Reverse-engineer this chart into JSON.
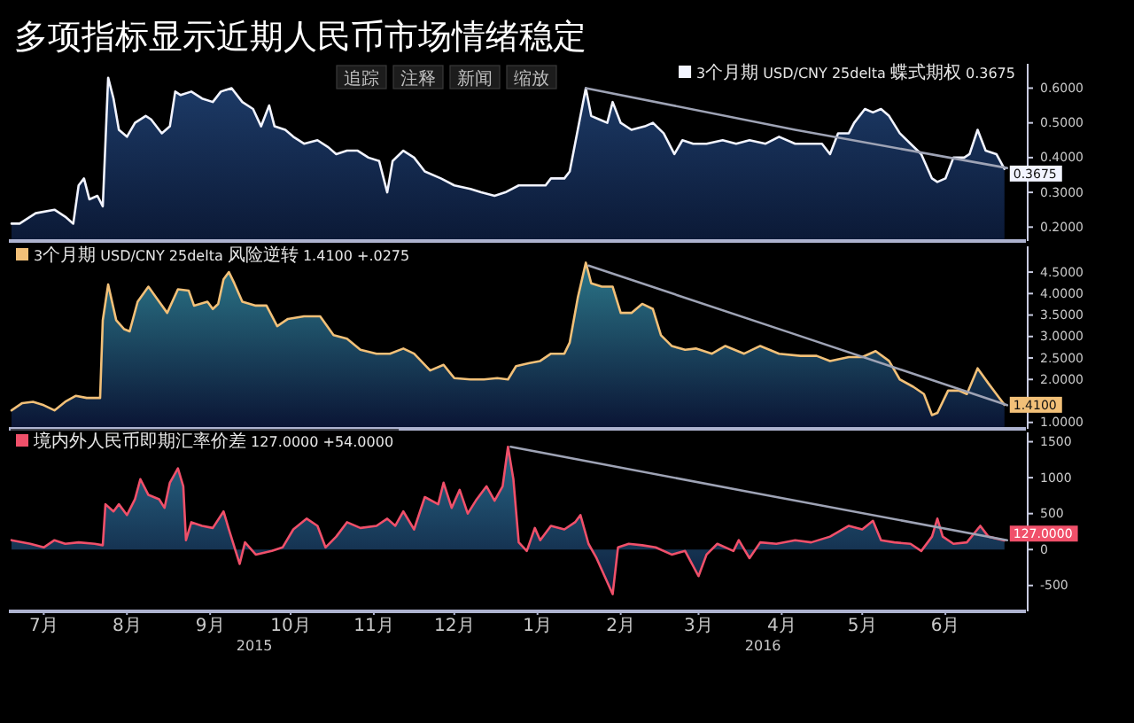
{
  "chart_data": [
    {
      "type": "area",
      "title": "多项指标显示近期人民币市场情绪稳定",
      "annotations": [
        "追踪",
        "注释",
        "新闻",
        "缩放"
      ],
      "xlim": [
        "2015-07-02",
        "2016-07-15"
      ],
      "ylim": [
        0.16,
        0.67
      ],
      "yticks": [
        {
          "value": 0.2,
          "label": "0.2000"
        },
        {
          "value": 0.3,
          "label": "0.3000"
        },
        {
          "value": 0.4,
          "label": "0.4000"
        },
        {
          "value": 0.5,
          "label": "0.5000"
        },
        {
          "value": 0.6,
          "label": "0.6000"
        }
      ],
      "tick_labels": "y",
      "legend": "top right",
      "series": [
        {
          "name": "3个月期 USD/CNY 25delta 蝶式期权 0.3675",
          "color": "#f2f4ff",
          "x": [
            "2015-07-03",
            "2015-07-06",
            "2015-07-12",
            "2015-07-19",
            "2015-07-23",
            "2015-07-26",
            "2015-07-28",
            "2015-07-30",
            "2015-08-01",
            "2015-08-04",
            "2015-08-06",
            "2015-08-08",
            "2015-08-10",
            "2015-08-12",
            "2015-08-15",
            "2015-08-18",
            "2015-08-22",
            "2015-08-24",
            "2015-08-28",
            "2015-08-31",
            "2015-09-02",
            "2015-09-04",
            "2015-09-08",
            "2015-09-12",
            "2015-09-16",
            "2015-09-19",
            "2015-09-23",
            "2015-09-27",
            "2015-10-01",
            "2015-10-04",
            "2015-10-07",
            "2015-10-09",
            "2015-10-13",
            "2015-10-16",
            "2015-10-20",
            "2015-10-25",
            "2015-10-29",
            "2015-11-01",
            "2015-11-05",
            "2015-11-09",
            "2015-11-13",
            "2015-11-17",
            "2015-11-20",
            "2015-11-22",
            "2015-11-26",
            "2015-11-30",
            "2015-12-04",
            "2015-12-10",
            "2015-12-15",
            "2015-12-21",
            "2015-12-25",
            "2015-12-30",
            "2016-01-03",
            "2016-01-08",
            "2016-01-14",
            "2016-01-18",
            "2016-01-20",
            "2016-01-25",
            "2016-01-27",
            "2016-01-30",
            "2016-02-02",
            "2016-02-04",
            "2016-02-07",
            "2016-02-10",
            "2016-02-12",
            "2016-02-15",
            "2016-02-19",
            "2016-02-24",
            "2016-02-27",
            "2016-03-02",
            "2016-03-06",
            "2016-03-09",
            "2016-03-13",
            "2016-03-18",
            "2016-03-24",
            "2016-03-29",
            "2016-04-03",
            "2016-04-09",
            "2016-04-14",
            "2016-04-20",
            "2016-04-25",
            "2016-04-30",
            "2016-05-03",
            "2016-05-06",
            "2016-05-10",
            "2016-05-12",
            "2016-05-16",
            "2016-05-19",
            "2016-05-22",
            "2016-05-25",
            "2016-05-29",
            "2016-06-02",
            "2016-06-06",
            "2016-06-10",
            "2016-06-12",
            "2016-06-15",
            "2016-06-18",
            "2016-06-22",
            "2016-06-24",
            "2016-06-27",
            "2016-06-30",
            "2016-07-04",
            "2016-07-07"
          ],
          "values": [
            0.21,
            0.21,
            0.24,
            0.25,
            0.23,
            0.21,
            0.32,
            0.34,
            0.28,
            0.29,
            0.26,
            0.63,
            0.57,
            0.48,
            0.46,
            0.5,
            0.52,
            0.51,
            0.47,
            0.49,
            0.59,
            0.58,
            0.59,
            0.57,
            0.56,
            0.59,
            0.6,
            0.56,
            0.54,
            0.49,
            0.55,
            0.49,
            0.48,
            0.46,
            0.44,
            0.45,
            0.43,
            0.41,
            0.42,
            0.42,
            0.4,
            0.39,
            0.3,
            0.39,
            0.42,
            0.4,
            0.36,
            0.34,
            0.32,
            0.31,
            0.3,
            0.29,
            0.3,
            0.32,
            0.32,
            0.32,
            0.34,
            0.34,
            0.36,
            0.48,
            0.6,
            0.52,
            0.51,
            0.5,
            0.56,
            0.5,
            0.48,
            0.49,
            0.5,
            0.47,
            0.41,
            0.45,
            0.44,
            0.44,
            0.45,
            0.44,
            0.45,
            0.44,
            0.46,
            0.44,
            0.44,
            0.44,
            0.41,
            0.47,
            0.47,
            0.5,
            0.54,
            0.53,
            0.54,
            0.52,
            0.47,
            0.44,
            0.41,
            0.34,
            0.33,
            0.34,
            0.4,
            0.4,
            0.41,
            0.48,
            0.42,
            0.41,
            0.3675
          ],
          "value_labels": [
            null,
            null,
            null,
            null,
            null,
            null,
            null,
            null,
            null,
            null,
            null,
            null,
            null,
            null,
            null,
            null,
            null,
            null,
            null,
            null,
            null,
            null,
            null,
            null,
            null,
            null,
            null,
            null,
            null,
            null,
            null,
            null,
            null,
            null,
            null,
            null,
            null,
            null,
            null,
            null,
            null,
            null,
            null,
            null,
            null,
            null,
            null,
            null,
            null,
            null,
            null,
            null,
            null,
            null,
            null,
            null,
            null,
            null,
            null,
            null,
            null,
            null,
            null,
            null,
            null,
            null,
            null,
            null,
            null,
            null,
            null,
            null,
            null,
            null,
            null,
            null,
            null,
            null,
            null,
            null,
            null,
            null,
            null,
            null,
            null,
            null,
            null,
            null,
            null,
            null,
            null,
            null,
            null,
            null,
            null,
            null,
            null,
            null,
            null,
            null,
            null,
            null,
            "0.3675"
          ]
        },
        {
          "type": "line",
          "color": "#9ea3b5",
          "x": [
            "2016-02-02",
            "2016-04-20",
            "2016-07-08"
          ],
          "values": [
            0.6,
            0.48,
            0.37
          ]
        }
      ]
    },
    {
      "type": "area",
      "xlim": [
        "2015-07-02",
        "2016-07-15"
      ],
      "ylim": [
        0.85,
        5.1
      ],
      "yticks": [
        {
          "value": 1,
          "label": "1.0000"
        },
        {
          "value": 2,
          "label": "2.0000"
        },
        {
          "value": 2.5,
          "label": "2.5000"
        },
        {
          "value": 3,
          "label": "3.0000"
        },
        {
          "value": 3.5,
          "label": "3.5000"
        },
        {
          "value": 4,
          "label": "4.0000"
        },
        {
          "value": 4.5,
          "label": "4.5000"
        }
      ],
      "tick_labels": "y",
      "legend": "top left",
      "series": [
        {
          "name": "3个月期 USD/CNY 25delta 风险逆转 1.4100 +.0275",
          "color": "#f2c078",
          "x": [
            "2015-07-03",
            "2015-07-07",
            "2015-07-11",
            "2015-07-15",
            "2015-07-19",
            "2015-07-23",
            "2015-07-27",
            "2015-07-31",
            "2015-08-05",
            "2015-08-06",
            "2015-08-08",
            "2015-08-11",
            "2015-08-14",
            "2015-08-16",
            "2015-08-19",
            "2015-08-23",
            "2015-08-26",
            "2015-08-30",
            "2015-09-03",
            "2015-09-07",
            "2015-09-09",
            "2015-09-14",
            "2015-09-16",
            "2015-09-18",
            "2015-09-20",
            "2015-09-22",
            "2015-09-24",
            "2015-09-27",
            "2015-10-02",
            "2015-10-06",
            "2015-10-10",
            "2015-10-14",
            "2015-10-20",
            "2015-10-26",
            "2015-10-31",
            "2015-11-05",
            "2015-11-10",
            "2015-11-16",
            "2015-11-21",
            "2015-11-26",
            "2015-11-30",
            "2015-12-06",
            "2015-12-11",
            "2015-12-15",
            "2015-12-21",
            "2015-12-26",
            "2015-12-31",
            "2016-01-04",
            "2016-01-07",
            "2016-01-12",
            "2016-01-16",
            "2016-01-20",
            "2016-01-25",
            "2016-01-27",
            "2016-01-30",
            "2016-02-02",
            "2016-02-04",
            "2016-02-08",
            "2016-02-12",
            "2016-02-15",
            "2016-02-19",
            "2016-02-23",
            "2016-02-27",
            "2016-03-01",
            "2016-03-05",
            "2016-03-10",
            "2016-03-14",
            "2016-03-20",
            "2016-03-25",
            "2016-04-01",
            "2016-04-07",
            "2016-04-14",
            "2016-04-22",
            "2016-04-28",
            "2016-05-03",
            "2016-05-10",
            "2016-05-15",
            "2016-05-20",
            "2016-05-25",
            "2016-05-29",
            "2016-06-03",
            "2016-06-07",
            "2016-06-10",
            "2016-06-12",
            "2016-06-16",
            "2016-06-20",
            "2016-06-23",
            "2016-06-27",
            "2016-07-01",
            "2016-07-04",
            "2016-07-07"
          ],
          "values": [
            1.28,
            1.45,
            1.48,
            1.4,
            1.28,
            1.48,
            1.62,
            1.57,
            1.57,
            3.38,
            4.21,
            3.38,
            3.17,
            3.12,
            3.81,
            4.16,
            3.9,
            3.55,
            4.1,
            4.07,
            3.72,
            3.81,
            3.64,
            3.76,
            4.33,
            4.5,
            4.24,
            3.81,
            3.72,
            3.72,
            3.24,
            3.41,
            3.47,
            3.47,
            3.03,
            2.95,
            2.69,
            2.6,
            2.6,
            2.72,
            2.6,
            2.21,
            2.34,
            2.03,
            2.0,
            2.0,
            2.03,
            2.0,
            2.31,
            2.38,
            2.43,
            2.6,
            2.6,
            2.86,
            3.9,
            4.72,
            4.24,
            4.16,
            4.16,
            3.55,
            3.55,
            3.76,
            3.64,
            3.03,
            2.78,
            2.69,
            2.72,
            2.6,
            2.78,
            2.6,
            2.78,
            2.6,
            2.55,
            2.55,
            2.43,
            2.52,
            2.52,
            2.66,
            2.43,
            2.0,
            1.83,
            1.66,
            1.17,
            1.22,
            1.74,
            1.74,
            1.66,
            2.26,
            1.91,
            1.66,
            1.41
          ],
          "value_labels": [
            null,
            null,
            null,
            null,
            null,
            null,
            null,
            null,
            null,
            null,
            null,
            null,
            null,
            null,
            null,
            null,
            null,
            null,
            null,
            null,
            null,
            null,
            null,
            null,
            null,
            null,
            null,
            null,
            null,
            null,
            null,
            null,
            null,
            null,
            null,
            null,
            null,
            null,
            null,
            null,
            null,
            null,
            null,
            null,
            null,
            null,
            null,
            null,
            null,
            null,
            null,
            null,
            null,
            null,
            null,
            null,
            null,
            null,
            null,
            null,
            null,
            null,
            null,
            null,
            null,
            null,
            null,
            null,
            null,
            null,
            null,
            null,
            null,
            null,
            null,
            null,
            null,
            null,
            null,
            null,
            null,
            null,
            null,
            null,
            null,
            null,
            null,
            null,
            null,
            null,
            "1.4100"
          ]
        },
        {
          "type": "line",
          "color": "#9ea3b5",
          "x": [
            "2016-02-03",
            "2016-04-20",
            "2016-07-08"
          ],
          "values": [
            4.65,
            3.05,
            1.4
          ]
        }
      ]
    },
    {
      "type": "area",
      "xlim": [
        "2015-07-02",
        "2016-07-15"
      ],
      "ylim": [
        -860,
        1630
      ],
      "xticks": [
        {
          "value": "2015-07-15",
          "label": "7月"
        },
        {
          "value": "2015-08-15",
          "label": "8月"
        },
        {
          "value": "2015-09-15",
          "label": "9月"
        },
        {
          "value": "2015-10-15",
          "label": "10月"
        },
        {
          "value": "2015-11-15",
          "label": "11月"
        },
        {
          "value": "2015-12-15",
          "label": "12月"
        },
        {
          "value": "2016-01-15",
          "label": "1月"
        },
        {
          "value": "2016-02-15",
          "label": "2月"
        },
        {
          "value": "2016-03-15",
          "label": "3月"
        },
        {
          "value": "2016-04-15",
          "label": "4月"
        },
        {
          "value": "2016-05-15",
          "label": "5月"
        },
        {
          "value": "2016-06-15",
          "label": "6月"
        }
      ],
      "yticks": [
        -500,
        0,
        500,
        1000,
        1500
      ],
      "legend": "top left",
      "annotations": [
        "2015",
        "2016"
      ],
      "series": [
        {
          "name": "境内外人民币即期汇率价差 127.0000 +54.0000",
          "color": "#f0506a",
          "x": [
            "2015-07-03",
            "2015-07-10",
            "2015-07-15",
            "2015-07-19",
            "2015-07-23",
            "2015-07-28",
            "2015-08-03",
            "2015-08-06",
            "2015-08-07",
            "2015-08-10",
            "2015-08-12",
            "2015-08-15",
            "2015-08-18",
            "2015-08-20",
            "2015-08-23",
            "2015-08-27",
            "2015-08-29",
            "2015-08-31",
            "2015-09-03",
            "2015-09-05",
            "2015-09-06",
            "2015-09-08",
            "2015-09-12",
            "2015-09-16",
            "2015-09-20",
            "2015-09-22",
            "2015-09-26",
            "2015-09-28",
            "2015-10-02",
            "2015-10-08",
            "2015-10-12",
            "2015-10-16",
            "2015-10-21",
            "2015-10-25",
            "2015-10-28",
            "2015-11-01",
            "2015-11-05",
            "2015-11-10",
            "2015-11-16",
            "2015-11-20",
            "2015-11-23",
            "2015-11-26",
            "2015-11-30",
            "2015-12-04",
            "2015-12-09",
            "2015-12-11",
            "2015-12-14",
            "2015-12-17",
            "2015-12-20",
            "2015-12-23",
            "2015-12-27",
            "2015-12-30",
            "2016-01-02",
            "2016-01-04",
            "2016-01-06",
            "2016-01-08",
            "2016-01-11",
            "2016-01-14",
            "2016-01-16",
            "2016-01-20",
            "2016-01-25",
            "2016-01-29",
            "2016-01-31",
            "2016-02-03",
            "2016-02-06",
            "2016-02-09",
            "2016-02-12",
            "2016-02-14",
            "2016-02-18",
            "2016-02-23",
            "2016-02-28",
            "2016-03-05",
            "2016-03-10",
            "2016-03-15",
            "2016-03-18",
            "2016-03-22",
            "2016-03-28",
            "2016-03-30",
            "2016-04-03",
            "2016-04-07",
            "2016-04-13",
            "2016-04-20",
            "2016-04-26",
            "2016-05-03",
            "2016-05-10",
            "2016-05-15",
            "2016-05-19",
            "2016-05-22",
            "2016-05-27",
            "2016-06-02",
            "2016-06-06",
            "2016-06-10",
            "2016-06-12",
            "2016-06-14",
            "2016-06-18",
            "2016-06-23",
            "2016-06-28",
            "2016-07-01",
            "2016-07-07"
          ],
          "values": [
            130,
            80,
            30,
            130,
            80,
            100,
            80,
            60,
            630,
            530,
            630,
            480,
            700,
            980,
            760,
            700,
            580,
            930,
            1130,
            880,
            130,
            380,
            330,
            300,
            530,
            280,
            -200,
            100,
            -70,
            -20,
            30,
            280,
            430,
            330,
            30,
            180,
            380,
            300,
            330,
            430,
            330,
            530,
            280,
            730,
            630,
            930,
            580,
            830,
            500,
            680,
            880,
            680,
            880,
            1430,
            980,
            100,
            -20,
            300,
            130,
            330,
            280,
            380,
            480,
            80,
            -120,
            -370,
            -620,
            30,
            80,
            60,
            30,
            -70,
            -20,
            -370,
            -70,
            80,
            -20,
            130,
            -120,
            100,
            80,
            130,
            100,
            180,
            330,
            280,
            400,
            130,
            100,
            80,
            -20,
            180,
            430,
            180,
            80,
            100,
            330,
            180,
            127
          ],
          "value_labels": [
            null,
            null,
            null,
            null,
            null,
            null,
            null,
            null,
            null,
            null,
            null,
            null,
            null,
            null,
            null,
            null,
            null,
            null,
            null,
            null,
            null,
            null,
            null,
            null,
            null,
            null,
            null,
            null,
            null,
            null,
            null,
            null,
            null,
            null,
            null,
            null,
            null,
            null,
            null,
            null,
            null,
            null,
            null,
            null,
            null,
            null,
            null,
            null,
            null,
            null,
            null,
            null,
            null,
            null,
            null,
            null,
            null,
            null,
            null,
            null,
            null,
            null,
            null,
            null,
            null,
            null,
            null,
            null,
            null,
            null,
            null,
            null,
            null,
            null,
            null,
            null,
            null,
            null,
            null,
            null,
            null,
            null,
            null,
            null,
            null,
            null,
            null,
            null,
            null,
            null,
            null,
            null,
            null,
            null,
            null,
            null,
            null,
            null,
            "127.0000"
          ]
        },
        {
          "type": "line",
          "color": "#9ea3b5",
          "x": [
            "2016-01-05",
            "2016-04-06",
            "2016-07-08"
          ],
          "values": [
            1430,
            780,
            130
          ]
        }
      ]
    }
  ]
}
